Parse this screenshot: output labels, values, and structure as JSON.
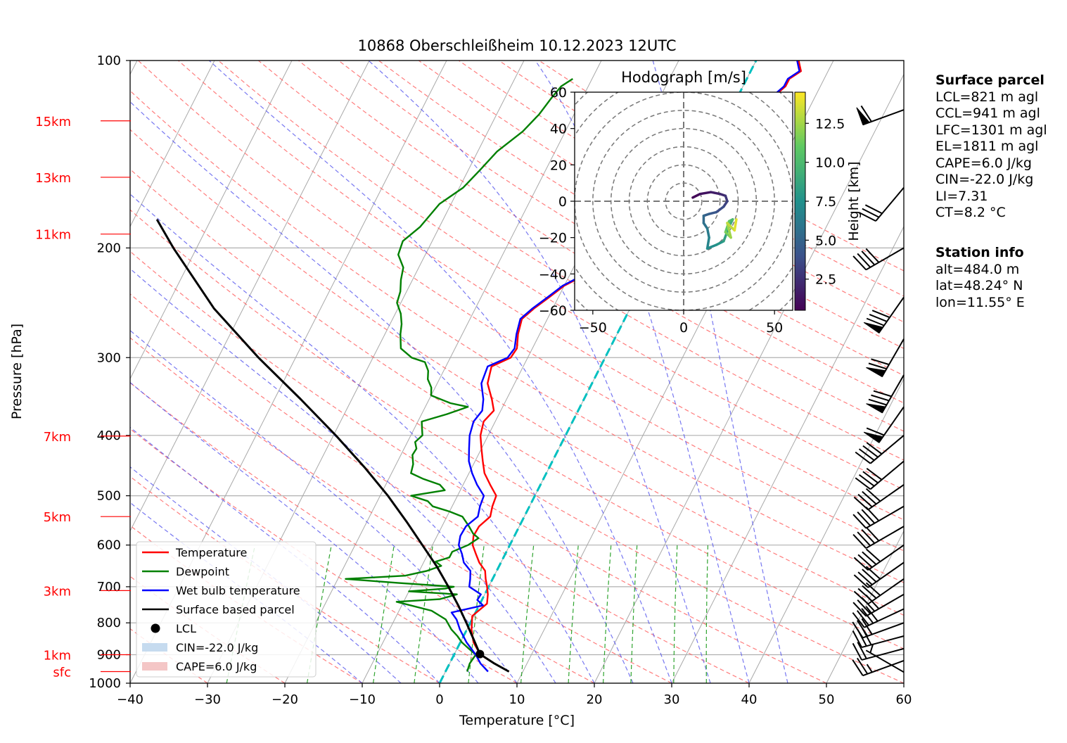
{
  "chart_data": {
    "type": "line",
    "title": "10868 Oberschleißheim 10.12.2023 12UTC",
    "xlabel": "Temperature [°C]",
    "ylabel": "Pressure [hPa]",
    "xlim": [
      -40,
      60
    ],
    "ylim": [
      1000,
      100
    ],
    "y_scale": "log",
    "x_ticks": [
      "−40",
      "−30",
      "−20",
      "−10",
      "0",
      "10",
      "20",
      "30",
      "40",
      "50",
      "60"
    ],
    "y_ticks": [
      {
        "p": 100,
        "label": "100"
      },
      {
        "p": 200,
        "label": "200"
      },
      {
        "p": 300,
        "label": "300"
      },
      {
        "p": 400,
        "label": "400"
      },
      {
        "p": 500,
        "label": "500"
      },
      {
        "p": 600,
        "label": "600"
      },
      {
        "p": 700,
        "label": "700"
      },
      {
        "p": 800,
        "label": "800"
      },
      {
        "p": 900,
        "label": "900"
      },
      {
        "p": 1000,
        "label": "1000"
      }
    ],
    "height_labels": [
      {
        "p": 125,
        "label": "15km"
      },
      {
        "p": 154,
        "label": "13km"
      },
      {
        "p": 190,
        "label": "11km"
      },
      {
        "p": 401,
        "label": "7km"
      },
      {
        "p": 540,
        "label": "5km"
      },
      {
        "p": 710,
        "label": "3km"
      },
      {
        "p": 900,
        "label": "1km"
      },
      {
        "p": 958,
        "label": "sfc"
      }
    ],
    "grid": true,
    "legend_position": "lower-left",
    "legend": [
      {
        "label": "Temperature",
        "color": "#ff0000",
        "kind": "line"
      },
      {
        "label": "Dewpoint",
        "color": "#008000",
        "kind": "line"
      },
      {
        "label": "Wet bulb temperature",
        "color": "#0000ff",
        "kind": "line"
      },
      {
        "label": "Surface based parcel",
        "color": "#000000",
        "kind": "line"
      },
      {
        "label": "LCL",
        "color": "#000000",
        "kind": "dot"
      },
      {
        "label": "CIN=-22.0 J/kg",
        "color": "#c6dbef",
        "kind": "patch"
      },
      {
        "label": "CAPE=6.0 J/kg",
        "color": "#f4c6c6",
        "kind": "patch"
      }
    ],
    "series": [
      {
        "name": "Temperature",
        "color": "#ff0000",
        "points": [
          [
            958,
            8.2
          ],
          [
            930,
            5.8
          ],
          [
            900,
            3.4
          ],
          [
            860,
            1.7
          ],
          [
            820,
            0.6
          ],
          [
            780,
            -0.2
          ],
          [
            745,
            0.9
          ],
          [
            720,
            0.4
          ],
          [
            700,
            -0.2
          ],
          [
            680,
            -0.9
          ],
          [
            660,
            -1.5
          ],
          [
            640,
            -2.8
          ],
          [
            620,
            -3.8
          ],
          [
            600,
            -4.8
          ],
          [
            580,
            -5.3
          ],
          [
            560,
            -5.2
          ],
          [
            540,
            -4.4
          ],
          [
            520,
            -4.8
          ],
          [
            500,
            -5.0
          ],
          [
            480,
            -6.5
          ],
          [
            460,
            -8.0
          ],
          [
            440,
            -9.0
          ],
          [
            420,
            -10.0
          ],
          [
            400,
            -11.0
          ],
          [
            380,
            -11.5
          ],
          [
            365,
            -10.9
          ],
          [
            350,
            -11.9
          ],
          [
            330,
            -13.5
          ],
          [
            310,
            -14.1
          ],
          [
            300,
            -12.2
          ],
          [
            290,
            -12.0
          ],
          [
            275,
            -12.8
          ],
          [
            260,
            -13.3
          ],
          [
            250,
            -12.4
          ],
          [
            240,
            -11.2
          ],
          [
            230,
            -10.0
          ],
          [
            220,
            -7.8
          ],
          [
            210,
            -7.0
          ],
          [
            200,
            -4.0
          ],
          [
            190,
            -5.0
          ],
          [
            180,
            -5.5
          ],
          [
            172,
            -6.0
          ],
          [
            165,
            -4.5
          ],
          [
            155,
            -4.2
          ],
          [
            148,
            -3.5
          ],
          [
            143,
            -3.0
          ],
          [
            138,
            -1.0
          ],
          [
            132,
            2.0
          ],
          [
            125,
            4.5
          ],
          [
            120,
            4.0
          ],
          [
            115,
            4.5
          ],
          [
            110,
            5.5
          ],
          [
            107,
            5.5
          ],
          [
            104,
            6.5
          ],
          [
            102,
            6.0
          ],
          [
            100,
            5.5
          ]
        ]
      },
      {
        "name": "Dewpoint",
        "color": "#008000",
        "points": [
          [
            958,
            2.8
          ],
          [
            930,
            2.6
          ],
          [
            900,
            2.8
          ],
          [
            880,
            1.5
          ],
          [
            860,
            0.2
          ],
          [
            840,
            -0.8
          ],
          [
            820,
            -2.0
          ],
          [
            790,
            -3.4
          ],
          [
            765,
            -5.8
          ],
          [
            740,
            -10.9
          ],
          [
            733,
            -5.5
          ],
          [
            720,
            -3.6
          ],
          [
            712,
            -10.0
          ],
          [
            705,
            -5.5
          ],
          [
            700,
            -4.5
          ],
          [
            690,
            -12.0
          ],
          [
            680,
            -19.0
          ],
          [
            672,
            -11.5
          ],
          [
            660,
            -9.0
          ],
          [
            648,
            -7.5
          ],
          [
            638,
            -8.5
          ],
          [
            628,
            -7.0
          ],
          [
            615,
            -7.0
          ],
          [
            600,
            -5.4
          ],
          [
            585,
            -4.5
          ],
          [
            575,
            -5.5
          ],
          [
            560,
            -6.5
          ],
          [
            540,
            -8.0
          ],
          [
            530,
            -10.0
          ],
          [
            520,
            -12.5
          ],
          [
            510,
            -13.5
          ],
          [
            500,
            -16.0
          ],
          [
            490,
            -12.0
          ],
          [
            480,
            -13.0
          ],
          [
            470,
            -15.5
          ],
          [
            460,
            -17.5
          ],
          [
            445,
            -17.8
          ],
          [
            430,
            -18.5
          ],
          [
            420,
            -18.4
          ],
          [
            410,
            -19.0
          ],
          [
            400,
            -18.5
          ],
          [
            390,
            -19.0
          ],
          [
            380,
            -19.5
          ],
          [
            370,
            -16.8
          ],
          [
            360,
            -14.5
          ],
          [
            355,
            -17.0
          ],
          [
            345,
            -20.0
          ],
          [
            335,
            -20.5
          ],
          [
            325,
            -21.5
          ],
          [
            315,
            -22.0
          ],
          [
            305,
            -23.0
          ],
          [
            300,
            -25.0
          ],
          [
            290,
            -27.0
          ],
          [
            275,
            -28.0
          ],
          [
            265,
            -28.5
          ],
          [
            255,
            -29.3
          ],
          [
            245,
            -30.5
          ],
          [
            235,
            -30.8
          ],
          [
            225,
            -31.5
          ],
          [
            215,
            -32.0
          ],
          [
            205,
            -33.5
          ],
          [
            195,
            -33.8
          ],
          [
            185,
            -32.5
          ],
          [
            170,
            -31.5
          ],
          [
            160,
            -29.5
          ],
          [
            150,
            -28.5
          ],
          [
            140,
            -27.5
          ],
          [
            130,
            -25.5
          ],
          [
            122,
            -24.5
          ],
          [
            115,
            -24.0
          ],
          [
            110,
            -23.5
          ],
          [
            107,
            -22.5
          ]
        ]
      },
      {
        "name": "Wet bulb temperature",
        "color": "#0000ff",
        "points": [
          [
            958,
            5.5
          ],
          [
            930,
            4.0
          ],
          [
            900,
            2.8
          ],
          [
            860,
            0.8
          ],
          [
            820,
            -0.9
          ],
          [
            790,
            -2.0
          ],
          [
            770,
            -3.1
          ],
          [
            750,
            0.5
          ],
          [
            735,
            -0.6
          ],
          [
            720,
            -0.5
          ],
          [
            700,
            -2.5
          ],
          [
            680,
            -2.9
          ],
          [
            660,
            -3.4
          ],
          [
            640,
            -4.8
          ],
          [
            620,
            -5.6
          ],
          [
            600,
            -6.6
          ],
          [
            580,
            -7.0
          ],
          [
            560,
            -6.9
          ],
          [
            540,
            -6.0
          ],
          [
            520,
            -6.4
          ],
          [
            500,
            -6.6
          ],
          [
            480,
            -8.2
          ],
          [
            460,
            -9.6
          ],
          [
            440,
            -10.8
          ],
          [
            420,
            -11.6
          ],
          [
            400,
            -12.4
          ],
          [
            380,
            -12.8
          ],
          [
            365,
            -12.4
          ],
          [
            350,
            -13.0
          ],
          [
            330,
            -14.3
          ],
          [
            310,
            -14.6
          ],
          [
            300,
            -12.6
          ],
          [
            290,
            -12.3
          ],
          [
            275,
            -13.0
          ],
          [
            260,
            -13.5
          ],
          [
            250,
            -12.6
          ],
          [
            240,
            -11.4
          ],
          [
            230,
            -10.2
          ],
          [
            220,
            -8.0
          ],
          [
            210,
            -7.2
          ],
          [
            200,
            -4.2
          ],
          [
            190,
            -5.2
          ],
          [
            180,
            -5.7
          ],
          [
            172,
            -6.2
          ],
          [
            165,
            -4.7
          ],
          [
            155,
            -4.4
          ],
          [
            148,
            -3.7
          ],
          [
            143,
            -3.2
          ],
          [
            138,
            -1.2
          ],
          [
            132,
            1.8
          ],
          [
            125,
            4.3
          ],
          [
            120,
            3.8
          ],
          [
            115,
            4.3
          ],
          [
            110,
            5.3
          ],
          [
            107,
            5.3
          ],
          [
            104,
            6.3
          ],
          [
            102,
            5.8
          ],
          [
            100,
            5.3
          ]
        ]
      },
      {
        "name": "Surface based parcel",
        "color": "#000000",
        "points": [
          [
            958,
            8.2
          ],
          [
            930,
            5.8
          ],
          [
            898,
            3.3
          ],
          [
            850,
            1.5
          ],
          [
            800,
            -0.5
          ],
          [
            750,
            -2.7
          ],
          [
            700,
            -5.2
          ],
          [
            650,
            -8.0
          ],
          [
            600,
            -11.3
          ],
          [
            550,
            -14.9
          ],
          [
            500,
            -19.0
          ],
          [
            450,
            -23.9
          ],
          [
            400,
            -29.7
          ],
          [
            350,
            -36.6
          ],
          [
            300,
            -44.8
          ],
          [
            250,
            -53.8
          ],
          [
            200,
            -63.0
          ],
          [
            180,
            -67.0
          ]
        ]
      }
    ],
    "lcl": {
      "p": 898,
      "t": 3.3
    },
    "cin_label": "CIN=-22.0 J/kg",
    "cape_label": "CAPE=6.0 J/kg",
    "zero_isotherm_color": "#00c0c0",
    "wind_barbs": [
      {
        "p": 960,
        "speed": 5,
        "direction": 300
      },
      {
        "p": 920,
        "speed": 25,
        "direction": 250
      },
      {
        "p": 880,
        "speed": 20,
        "direction": 255
      },
      {
        "p": 840,
        "speed": 30,
        "direction": 255
      },
      {
        "p": 800,
        "speed": 30,
        "direction": 250
      },
      {
        "p": 760,
        "speed": 40,
        "direction": 245
      },
      {
        "p": 720,
        "speed": 40,
        "direction": 240
      },
      {
        "p": 680,
        "speed": 40,
        "direction": 235
      },
      {
        "p": 640,
        "speed": 40,
        "direction": 235
      },
      {
        "p": 600,
        "speed": 40,
        "direction": 235
      },
      {
        "p": 560,
        "speed": 40,
        "direction": 240
      },
      {
        "p": 520,
        "speed": 40,
        "direction": 240
      },
      {
        "p": 480,
        "speed": 40,
        "direction": 235
      },
      {
        "p": 440,
        "speed": 40,
        "direction": 230
      },
      {
        "p": 400,
        "speed": 40,
        "direction": 230
      },
      {
        "p": 360,
        "speed": 60,
        "direction": 215
      },
      {
        "p": 320,
        "speed": 80,
        "direction": 210
      },
      {
        "p": 280,
        "speed": 70,
        "direction": 210
      },
      {
        "p": 240,
        "speed": 80,
        "direction": 215
      },
      {
        "p": 200,
        "speed": 40,
        "direction": 240
      },
      {
        "p": 160,
        "speed": 30,
        "direction": 220
      },
      {
        "p": 120,
        "speed": 60,
        "direction": 250
      }
    ],
    "hodograph": {
      "title": "Hodograph [m/s]",
      "xlim": [
        -60,
        60
      ],
      "ylim": [
        -60,
        60
      ],
      "x_ticks": [
        "−50",
        "0",
        "50"
      ],
      "y_ticks": [
        {
          "v": 60,
          "label": "60"
        },
        {
          "v": 40,
          "label": "40"
        },
        {
          "v": 20,
          "label": "20"
        },
        {
          "v": 0,
          "label": "0"
        },
        {
          "v": -20,
          "label": "−20"
        },
        {
          "v": -40,
          "label": "−40"
        },
        {
          "v": -60,
          "label": "−60"
        }
      ],
      "ring_step": 10,
      "colorbar_label": "Height [km]",
      "colorbar_ticks": [
        "2.5",
        "5.0",
        "7.5",
        "10.0",
        "12.5"
      ],
      "height_range": [
        0.5,
        14.5
      ],
      "points": [
        [
          5,
          2,
          0.5
        ],
        [
          9,
          4,
          1.0
        ],
        [
          15,
          5,
          1.5
        ],
        [
          20,
          4,
          2.0
        ],
        [
          23,
          3,
          2.5
        ],
        [
          24,
          0,
          3.0
        ],
        [
          22,
          -3,
          3.5
        ],
        [
          18,
          -6,
          4.0
        ],
        [
          14,
          -7,
          4.5
        ],
        [
          11,
          -8,
          5.0
        ],
        [
          11,
          -12,
          5.5
        ],
        [
          13,
          -15,
          6.0
        ],
        [
          14,
          -20,
          6.5
        ],
        [
          13,
          -26,
          7.0
        ],
        [
          18,
          -24,
          7.5
        ],
        [
          22,
          -22,
          8.0
        ],
        [
          25,
          -14,
          8.8
        ],
        [
          27,
          -10,
          9.6
        ],
        [
          25,
          -11,
          10.4
        ],
        [
          23,
          -17,
          11.2
        ],
        [
          26,
          -20,
          12.0
        ],
        [
          24,
          -12,
          12.8
        ],
        [
          28,
          -16,
          13.5
        ],
        [
          29,
          -10,
          14.2
        ]
      ]
    }
  },
  "surface_parcel": {
    "heading": "Surface parcel",
    "lines": [
      "LCL=821 m agl",
      "CCL=941 m agl",
      "LFC=1301 m agl",
      "EL=1811 m agl",
      "CAPE=6.0 J/kg",
      "CIN=-22.0 J/kg",
      "LI=7.31",
      "CT=8.2 °C"
    ]
  },
  "station_info": {
    "heading": "Station info",
    "lines": [
      "alt=484.0 m",
      "lat=48.24° N",
      "lon=11.55° E"
    ]
  }
}
